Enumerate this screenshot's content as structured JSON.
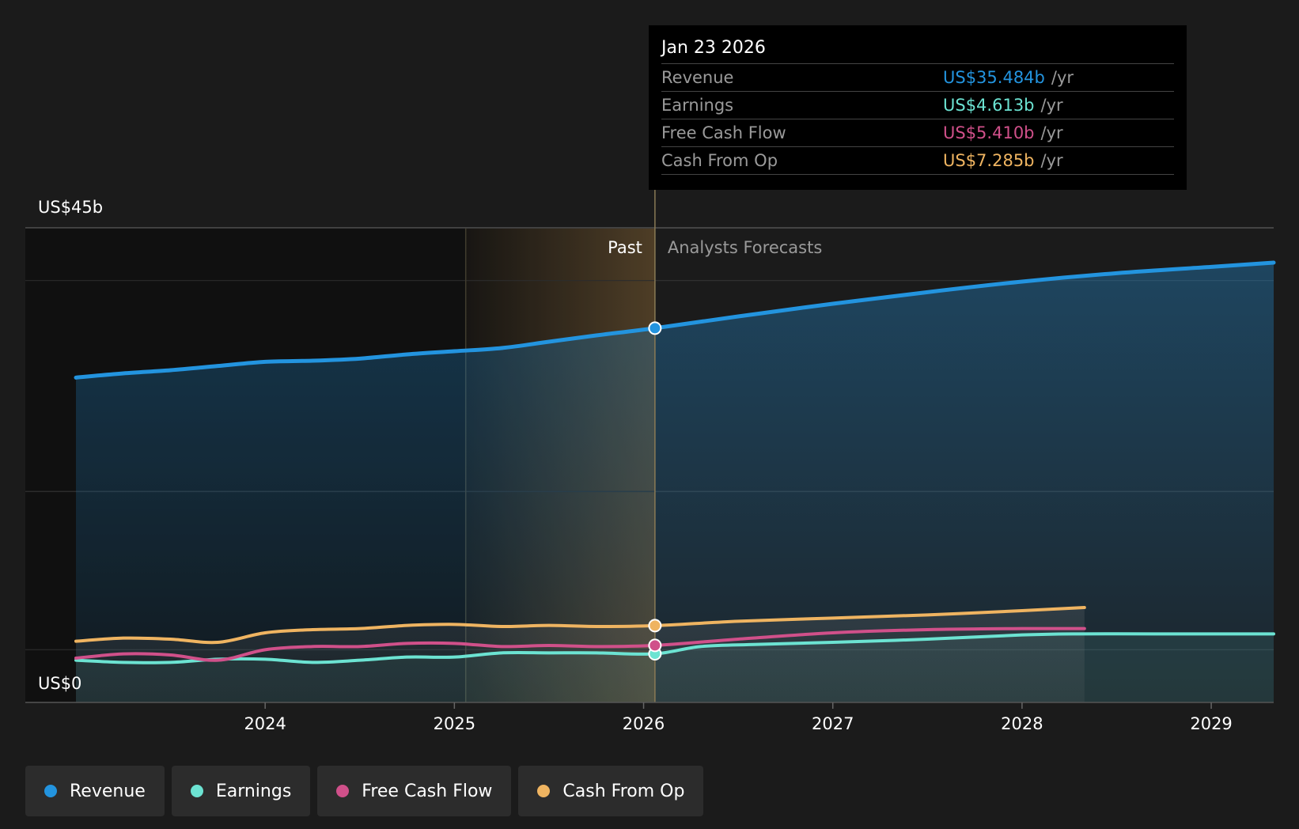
{
  "tooltip": {
    "date": "Jan 23 2026",
    "rows": [
      {
        "label": "Revenue",
        "value": "US$35.484b",
        "unit": "/yr",
        "color": "#2394df"
      },
      {
        "label": "Earnings",
        "value": "US$4.613b",
        "unit": "/yr",
        "color": "#6ce3d2"
      },
      {
        "label": "Free Cash Flow",
        "value": "US$5.410b",
        "unit": "/yr",
        "color": "#d0508a"
      },
      {
        "label": "Cash From Op",
        "value": "US$7.285b",
        "unit": "/yr",
        "color": "#efb461"
      }
    ]
  },
  "legend": [
    {
      "label": "Revenue",
      "color": "#2394df"
    },
    {
      "label": "Earnings",
      "color": "#6ce3d2"
    },
    {
      "label": "Free Cash Flow",
      "color": "#d0508a"
    },
    {
      "label": "Cash From Op",
      "color": "#efb461"
    }
  ],
  "chart_data": {
    "type": "line",
    "y_top_label": "US$45b",
    "y_bottom_label": "US$0",
    "ylim": [
      0,
      45
    ],
    "xlim": [
      2023.0,
      2029.33
    ],
    "x_ticks": [
      "2024",
      "2025",
      "2026",
      "2027",
      "2028",
      "2029"
    ],
    "past_label": "Past",
    "forecast_label": "Analysts Forecasts",
    "divider_x": 2026.06,
    "highlight_start_x": 2025.06,
    "series": [
      {
        "name": "Revenue",
        "color": "#2394df",
        "x": [
          2023.0,
          2023.25,
          2023.5,
          2023.75,
          2024.0,
          2024.25,
          2024.5,
          2024.75,
          2025.0,
          2025.25,
          2025.5,
          2025.75,
          2026.06,
          2026.5,
          2027.0,
          2027.5,
          2028.0,
          2028.5,
          2029.0,
          2029.33
        ],
        "y": [
          30.8,
          31.2,
          31.5,
          31.9,
          32.3,
          32.4,
          32.6,
          33.0,
          33.3,
          33.6,
          34.2,
          34.8,
          35.484,
          36.6,
          37.8,
          38.9,
          39.9,
          40.7,
          41.3,
          41.7
        ]
      },
      {
        "name": "Earnings",
        "color": "#6ce3d2",
        "x": [
          2023.0,
          2023.25,
          2023.5,
          2023.75,
          2024.0,
          2024.25,
          2024.5,
          2024.75,
          2025.0,
          2025.25,
          2025.5,
          2025.75,
          2026.06,
          2026.3,
          2026.6,
          2027.0,
          2027.5,
          2028.0,
          2028.3,
          2028.7,
          2029.0,
          2029.33
        ],
        "y": [
          4.0,
          3.8,
          3.8,
          4.1,
          4.1,
          3.8,
          4.0,
          4.3,
          4.3,
          4.7,
          4.7,
          4.7,
          4.613,
          5.3,
          5.5,
          5.7,
          6.0,
          6.4,
          6.5,
          6.5,
          6.5,
          6.5
        ]
      },
      {
        "name": "Free Cash Flow",
        "color": "#d0508a",
        "x": [
          2023.0,
          2023.25,
          2023.5,
          2023.75,
          2024.0,
          2024.25,
          2024.5,
          2024.75,
          2025.0,
          2025.25,
          2025.5,
          2025.75,
          2026.06,
          2026.5,
          2027.0,
          2027.5,
          2028.0,
          2028.33
        ],
        "y": [
          4.2,
          4.6,
          4.5,
          4.0,
          5.0,
          5.3,
          5.3,
          5.6,
          5.6,
          5.3,
          5.4,
          5.3,
          5.41,
          6.0,
          6.6,
          6.9,
          7.0,
          7.0
        ]
      },
      {
        "name": "Cash From Op",
        "color": "#efb461",
        "x": [
          2023.0,
          2023.25,
          2023.5,
          2023.75,
          2024.0,
          2024.25,
          2024.5,
          2024.75,
          2025.0,
          2025.25,
          2025.5,
          2025.75,
          2026.06,
          2026.5,
          2027.0,
          2027.5,
          2028.0,
          2028.33
        ],
        "y": [
          5.8,
          6.1,
          6.0,
          5.7,
          6.6,
          6.9,
          7.0,
          7.3,
          7.4,
          7.2,
          7.3,
          7.2,
          7.285,
          7.7,
          8.0,
          8.3,
          8.7,
          9.0
        ]
      }
    ]
  }
}
